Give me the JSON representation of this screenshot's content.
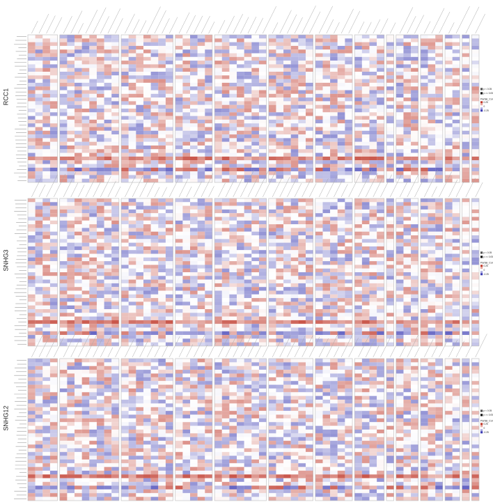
{
  "chart_data": {
    "type": "heatmap",
    "colors": {
      "positive": "#c0392b",
      "negative": "#3b3bb3",
      "neutral": "#ffffff",
      "frame": "#bbbbbb"
    },
    "legend": {
      "significance": [
        {
          "label": "p < 0.05",
          "swatch": "#555555"
        },
        {
          "label": "p >= 0.05",
          "swatch": "#111111"
        }
      ],
      "color_title": "Partial_Cor",
      "color_ticks": [
        "0.25",
        "0",
        "-0.25"
      ]
    },
    "blocks": [
      4,
      8,
      7,
      5,
      7,
      6,
      5,
      4,
      1,
      3,
      3,
      2,
      1,
      1
    ],
    "panels": [
      {
        "gene": "RCC1",
        "n_rows": 40
      },
      {
        "gene": "SNHG3",
        "n_rows": 40
      },
      {
        "gene": "SNHG12",
        "n_rows": 38
      }
    ]
  }
}
